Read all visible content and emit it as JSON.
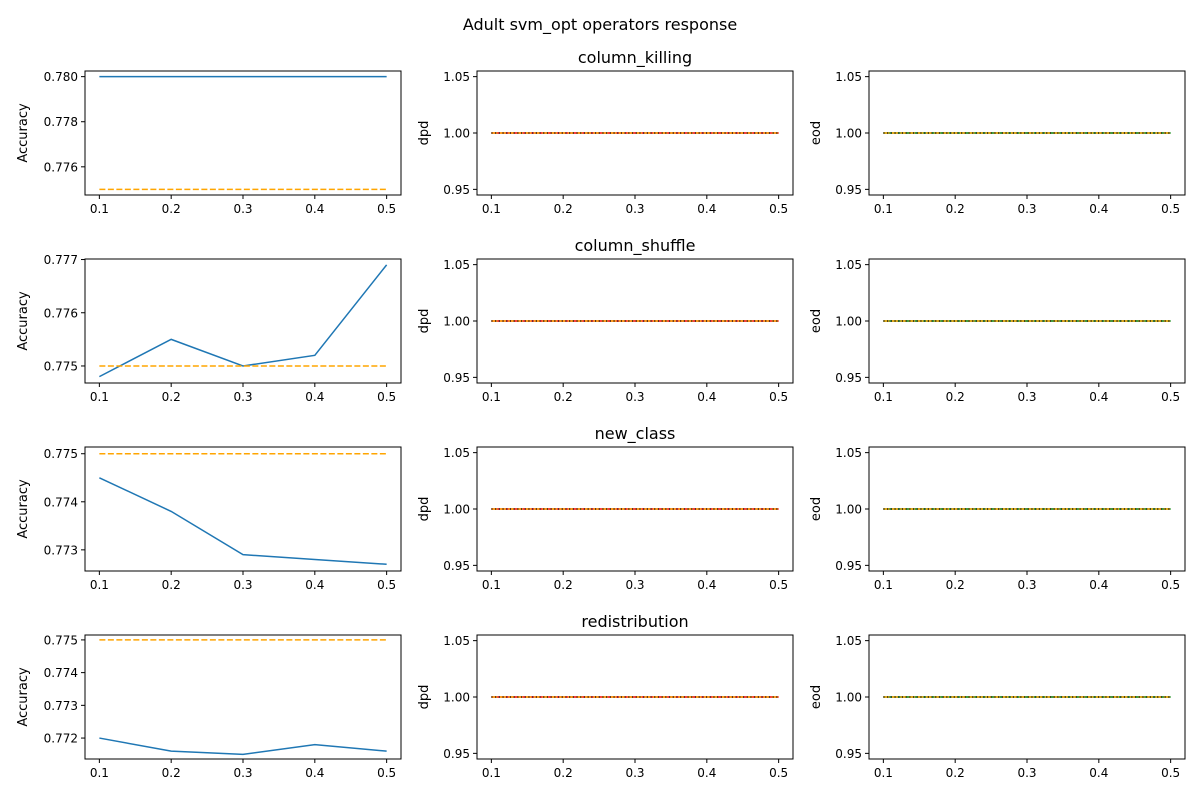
{
  "figure": {
    "title": "Adult svm_opt operators response"
  },
  "colors": {
    "accuracy_line": "#1f77b4",
    "baseline_dashed": "#ffa500",
    "dpd_line": "#ff0000",
    "eod_line": "#008000",
    "dotted_overlay": "#000000"
  },
  "chart_data": [
    {
      "type": "line",
      "row": 0,
      "col": 0,
      "ylabel": "Accuracy",
      "x": [
        0.1,
        0.2,
        0.3,
        0.4,
        0.5
      ],
      "xticks": [
        "0.1",
        "0.2",
        "0.3",
        "0.4",
        "0.5"
      ],
      "ylim": [
        0.77475,
        0.78025
      ],
      "yticks": [
        "0.776",
        "0.778",
        "0.780"
      ],
      "ytick_values": [
        0.776,
        0.778,
        0.78
      ],
      "series": [
        {
          "style": "solid",
          "color": "#1f77b4",
          "values": [
            0.78,
            0.78,
            0.78,
            0.78,
            0.78
          ]
        },
        {
          "style": "dashed",
          "color": "#ffa500",
          "values": [
            0.775,
            0.775,
            0.775,
            0.775,
            0.775
          ]
        }
      ]
    },
    {
      "type": "line",
      "row": 0,
      "col": 1,
      "title": "column_killing",
      "ylabel": "dpd",
      "x": [
        0.1,
        0.2,
        0.3,
        0.4,
        0.5
      ],
      "xticks": [
        "0.1",
        "0.2",
        "0.3",
        "0.4",
        "0.5"
      ],
      "ylim": [
        0.945,
        1.055
      ],
      "yticks": [
        "0.95",
        "1.00",
        "1.05"
      ],
      "ytick_values": [
        0.95,
        1.0,
        1.05
      ],
      "series": [
        {
          "style": "solid",
          "color": "#ff0000",
          "values": [
            1.0,
            1.0,
            1.0,
            1.0,
            1.0
          ]
        },
        {
          "style": "dashed",
          "color": "#ffa500",
          "values": [
            1.0,
            1.0,
            1.0,
            1.0,
            1.0
          ]
        },
        {
          "style": "dotted",
          "color": "#000000",
          "values": [
            1.0,
            1.0,
            1.0,
            1.0,
            1.0
          ]
        }
      ]
    },
    {
      "type": "line",
      "row": 0,
      "col": 2,
      "ylabel": "eod",
      "x": [
        0.1,
        0.2,
        0.3,
        0.4,
        0.5
      ],
      "xticks": [
        "0.1",
        "0.2",
        "0.3",
        "0.4",
        "0.5"
      ],
      "ylim": [
        0.945,
        1.055
      ],
      "yticks": [
        "0.95",
        "1.00",
        "1.05"
      ],
      "ytick_values": [
        0.95,
        1.0,
        1.05
      ],
      "series": [
        {
          "style": "solid",
          "color": "#008000",
          "values": [
            1.0,
            1.0,
            1.0,
            1.0,
            1.0
          ]
        },
        {
          "style": "dashed",
          "color": "#ffa500",
          "values": [
            1.0,
            1.0,
            1.0,
            1.0,
            1.0
          ]
        },
        {
          "style": "dotted",
          "color": "#000000",
          "values": [
            1.0,
            1.0,
            1.0,
            1.0,
            1.0
          ]
        }
      ]
    },
    {
      "type": "line",
      "row": 1,
      "col": 0,
      "ylabel": "Accuracy",
      "x": [
        0.1,
        0.2,
        0.3,
        0.4,
        0.5
      ],
      "xticks": [
        "0.1",
        "0.2",
        "0.3",
        "0.4",
        "0.5"
      ],
      "ylim": [
        0.77468,
        0.77701
      ],
      "yticks": [
        "0.775",
        "0.776",
        "0.777"
      ],
      "ytick_values": [
        0.775,
        0.776,
        0.777
      ],
      "series": [
        {
          "style": "solid",
          "color": "#1f77b4",
          "values": [
            0.7748,
            0.7755,
            0.775,
            0.7752,
            0.7769
          ]
        },
        {
          "style": "dashed",
          "color": "#ffa500",
          "values": [
            0.775,
            0.775,
            0.775,
            0.775,
            0.775
          ]
        }
      ]
    },
    {
      "type": "line",
      "row": 1,
      "col": 1,
      "title": "column_shuffle",
      "ylabel": "dpd",
      "x": [
        0.1,
        0.2,
        0.3,
        0.4,
        0.5
      ],
      "xticks": [
        "0.1",
        "0.2",
        "0.3",
        "0.4",
        "0.5"
      ],
      "ylim": [
        0.945,
        1.055
      ],
      "yticks": [
        "0.95",
        "1.00",
        "1.05"
      ],
      "ytick_values": [
        0.95,
        1.0,
        1.05
      ],
      "series": [
        {
          "style": "solid",
          "color": "#ff0000",
          "values": [
            1.0,
            1.0,
            1.0,
            1.0,
            1.0
          ]
        },
        {
          "style": "dashed",
          "color": "#ffa500",
          "values": [
            1.0,
            1.0,
            1.0,
            1.0,
            1.0
          ]
        },
        {
          "style": "dotted",
          "color": "#000000",
          "values": [
            1.0,
            1.0,
            1.0,
            1.0,
            1.0
          ]
        }
      ]
    },
    {
      "type": "line",
      "row": 1,
      "col": 2,
      "ylabel": "eod",
      "x": [
        0.1,
        0.2,
        0.3,
        0.4,
        0.5
      ],
      "xticks": [
        "0.1",
        "0.2",
        "0.3",
        "0.4",
        "0.5"
      ],
      "ylim": [
        0.945,
        1.055
      ],
      "yticks": [
        "0.95",
        "1.00",
        "1.05"
      ],
      "ytick_values": [
        0.95,
        1.0,
        1.05
      ],
      "series": [
        {
          "style": "solid",
          "color": "#008000",
          "values": [
            1.0,
            1.0,
            1.0,
            1.0,
            1.0
          ]
        },
        {
          "style": "dashed",
          "color": "#ffa500",
          "values": [
            1.0,
            1.0,
            1.0,
            1.0,
            1.0
          ]
        },
        {
          "style": "dotted",
          "color": "#000000",
          "values": [
            1.0,
            1.0,
            1.0,
            1.0,
            1.0
          ]
        }
      ]
    },
    {
      "type": "line",
      "row": 2,
      "col": 0,
      "ylabel": "Accuracy",
      "x": [
        0.1,
        0.2,
        0.3,
        0.4,
        0.5
      ],
      "xticks": [
        "0.1",
        "0.2",
        "0.3",
        "0.4",
        "0.5"
      ],
      "ylim": [
        0.77256,
        0.77514
      ],
      "yticks": [
        "0.773",
        "0.774",
        "0.775"
      ],
      "ytick_values": [
        0.773,
        0.774,
        0.775
      ],
      "series": [
        {
          "style": "solid",
          "color": "#1f77b4",
          "values": [
            0.7745,
            0.7738,
            0.7729,
            0.7728,
            0.7727
          ]
        },
        {
          "style": "dashed",
          "color": "#ffa500",
          "values": [
            0.775,
            0.775,
            0.775,
            0.775,
            0.775
          ]
        }
      ]
    },
    {
      "type": "line",
      "row": 2,
      "col": 1,
      "title": "new_class",
      "ylabel": "dpd",
      "x": [
        0.1,
        0.2,
        0.3,
        0.4,
        0.5
      ],
      "xticks": [
        "0.1",
        "0.2",
        "0.3",
        "0.4",
        "0.5"
      ],
      "ylim": [
        0.945,
        1.055
      ],
      "yticks": [
        "0.95",
        "1.00",
        "1.05"
      ],
      "ytick_values": [
        0.95,
        1.0,
        1.05
      ],
      "series": [
        {
          "style": "solid",
          "color": "#ff0000",
          "values": [
            1.0,
            1.0,
            1.0,
            1.0,
            1.0
          ]
        },
        {
          "style": "dashed",
          "color": "#ffa500",
          "values": [
            1.0,
            1.0,
            1.0,
            1.0,
            1.0
          ]
        },
        {
          "style": "dotted",
          "color": "#000000",
          "values": [
            1.0,
            1.0,
            1.0,
            1.0,
            1.0
          ]
        }
      ]
    },
    {
      "type": "line",
      "row": 2,
      "col": 2,
      "ylabel": "eod",
      "x": [
        0.1,
        0.2,
        0.3,
        0.4,
        0.5
      ],
      "xticks": [
        "0.1",
        "0.2",
        "0.3",
        "0.4",
        "0.5"
      ],
      "ylim": [
        0.945,
        1.055
      ],
      "yticks": [
        "0.95",
        "1.00",
        "1.05"
      ],
      "ytick_values": [
        0.95,
        1.0,
        1.05
      ],
      "series": [
        {
          "style": "solid",
          "color": "#008000",
          "values": [
            1.0,
            1.0,
            1.0,
            1.0,
            1.0
          ]
        },
        {
          "style": "dashed",
          "color": "#ffa500",
          "values": [
            1.0,
            1.0,
            1.0,
            1.0,
            1.0
          ]
        },
        {
          "style": "dotted",
          "color": "#000000",
          "values": [
            1.0,
            1.0,
            1.0,
            1.0,
            1.0
          ]
        }
      ]
    },
    {
      "type": "line",
      "row": 3,
      "col": 0,
      "ylabel": "Accuracy",
      "x": [
        0.1,
        0.2,
        0.3,
        0.4,
        0.5
      ],
      "xticks": [
        "0.1",
        "0.2",
        "0.3",
        "0.4",
        "0.5"
      ],
      "ylim": [
        0.77136,
        0.77515
      ],
      "yticks": [
        "0.772",
        "0.773",
        "0.774",
        "0.775"
      ],
      "ytick_values": [
        0.772,
        0.773,
        0.774,
        0.775
      ],
      "series": [
        {
          "style": "solid",
          "color": "#1f77b4",
          "values": [
            0.772,
            0.7716,
            0.7715,
            0.7718,
            0.7716
          ]
        },
        {
          "style": "dashed",
          "color": "#ffa500",
          "values": [
            0.775,
            0.775,
            0.775,
            0.775,
            0.775
          ]
        }
      ]
    },
    {
      "type": "line",
      "row": 3,
      "col": 1,
      "title": "redistribution",
      "ylabel": "dpd",
      "x": [
        0.1,
        0.2,
        0.3,
        0.4,
        0.5
      ],
      "xticks": [
        "0.1",
        "0.2",
        "0.3",
        "0.4",
        "0.5"
      ],
      "ylim": [
        0.945,
        1.055
      ],
      "yticks": [
        "0.95",
        "1.00",
        "1.05"
      ],
      "ytick_values": [
        0.95,
        1.0,
        1.05
      ],
      "series": [
        {
          "style": "solid",
          "color": "#ff0000",
          "values": [
            1.0,
            1.0,
            1.0,
            1.0,
            1.0
          ]
        },
        {
          "style": "dashed",
          "color": "#ffa500",
          "values": [
            1.0,
            1.0,
            1.0,
            1.0,
            1.0
          ]
        },
        {
          "style": "dotted",
          "color": "#000000",
          "values": [
            1.0,
            1.0,
            1.0,
            1.0,
            1.0
          ]
        }
      ]
    },
    {
      "type": "line",
      "row": 3,
      "col": 2,
      "ylabel": "eod",
      "x": [
        0.1,
        0.2,
        0.3,
        0.4,
        0.5
      ],
      "xticks": [
        "0.1",
        "0.2",
        "0.3",
        "0.4",
        "0.5"
      ],
      "ylim": [
        0.945,
        1.055
      ],
      "yticks": [
        "0.95",
        "1.00",
        "1.05"
      ],
      "ytick_values": [
        0.95,
        1.0,
        1.05
      ],
      "series": [
        {
          "style": "solid",
          "color": "#008000",
          "values": [
            1.0,
            1.0,
            1.0,
            1.0,
            1.0
          ]
        },
        {
          "style": "dashed",
          "color": "#ffa500",
          "values": [
            1.0,
            1.0,
            1.0,
            1.0,
            1.0
          ]
        },
        {
          "style": "dotted",
          "color": "#000000",
          "values": [
            1.0,
            1.0,
            1.0,
            1.0,
            1.0
          ]
        }
      ]
    }
  ]
}
